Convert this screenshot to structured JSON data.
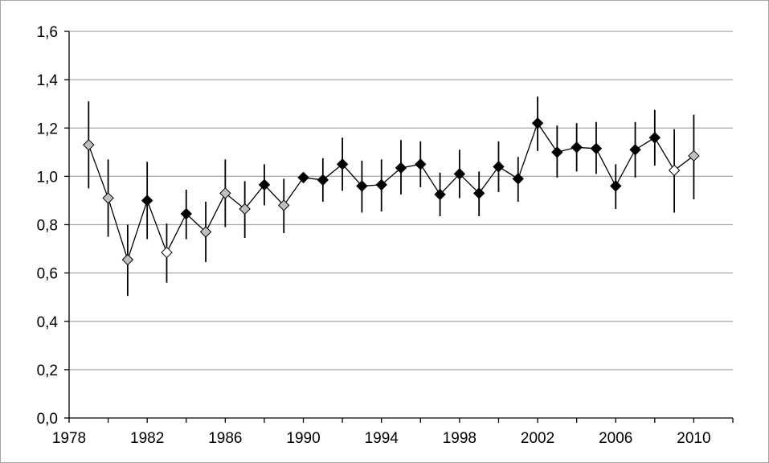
{
  "chart_data": {
    "type": "scatter",
    "title": "",
    "xlabel": "",
    "ylabel": "",
    "xlim": [
      1978,
      2012
    ],
    "ylim": [
      0,
      1.6
    ],
    "x_ticks": [
      1978,
      1982,
      1986,
      1990,
      1994,
      1998,
      2002,
      2006,
      2010
    ],
    "y_ticks": [
      0,
      0.2,
      0.4,
      0.6,
      0.8,
      1.0,
      1.2,
      1.4,
      1.6
    ],
    "y_tick_labels": [
      "0,0",
      "0,2",
      "0,4",
      "0,6",
      "0,8",
      "1,0",
      "1,2",
      "1,4",
      "1,6"
    ],
    "grid": "horizontal",
    "legend": "none",
    "colors": {
      "line": "#000000",
      "filled_marker": "#000000",
      "grey_marker": "#bfbfbf",
      "white_marker": "#ffffff",
      "grid": "#a6a6a6"
    },
    "points": [
      {
        "x": 1979,
        "y": 1.13,
        "low": 0.95,
        "high": 1.31,
        "marker": "grey"
      },
      {
        "x": 1980,
        "y": 0.91,
        "low": 0.75,
        "high": 1.07,
        "marker": "grey"
      },
      {
        "x": 1981,
        "y": 0.655,
        "low": 0.505,
        "high": 0.8,
        "marker": "grey"
      },
      {
        "x": 1982,
        "y": 0.9,
        "low": 0.74,
        "high": 1.06,
        "marker": "black"
      },
      {
        "x": 1983,
        "y": 0.685,
        "low": 0.56,
        "high": 0.805,
        "marker": "white"
      },
      {
        "x": 1984,
        "y": 0.845,
        "low": 0.74,
        "high": 0.945,
        "marker": "black"
      },
      {
        "x": 1985,
        "y": 0.77,
        "low": 0.645,
        "high": 0.895,
        "marker": "grey"
      },
      {
        "x": 1986,
        "y": 0.93,
        "low": 0.79,
        "high": 1.07,
        "marker": "grey"
      },
      {
        "x": 1987,
        "y": 0.865,
        "low": 0.745,
        "high": 0.98,
        "marker": "grey"
      },
      {
        "x": 1988,
        "y": 0.965,
        "low": 0.88,
        "high": 1.05,
        "marker": "black"
      },
      {
        "x": 1989,
        "y": 0.88,
        "low": 0.765,
        "high": 0.99,
        "marker": "grey"
      },
      {
        "x": 1990,
        "y": 0.995,
        "low": 0.99,
        "high": 1.0,
        "marker": "black"
      },
      {
        "x": 1991,
        "y": 0.985,
        "low": 0.895,
        "high": 1.075,
        "marker": "black"
      },
      {
        "x": 1992,
        "y": 1.05,
        "low": 0.94,
        "high": 1.16,
        "marker": "black"
      },
      {
        "x": 1993,
        "y": 0.96,
        "low": 0.85,
        "high": 1.065,
        "marker": "black"
      },
      {
        "x": 1994,
        "y": 0.965,
        "low": 0.855,
        "high": 1.07,
        "marker": "black"
      },
      {
        "x": 1995,
        "y": 1.035,
        "low": 0.925,
        "high": 1.15,
        "marker": "black"
      },
      {
        "x": 1996,
        "y": 1.05,
        "low": 0.955,
        "high": 1.145,
        "marker": "black"
      },
      {
        "x": 1997,
        "y": 0.925,
        "low": 0.835,
        "high": 1.015,
        "marker": "black"
      },
      {
        "x": 1998,
        "y": 1.01,
        "low": 0.91,
        "high": 1.11,
        "marker": "black"
      },
      {
        "x": 1999,
        "y": 0.93,
        "low": 0.835,
        "high": 1.02,
        "marker": "black"
      },
      {
        "x": 2000,
        "y": 1.04,
        "low": 0.935,
        "high": 1.145,
        "marker": "black"
      },
      {
        "x": 2001,
        "y": 0.99,
        "low": 0.895,
        "high": 1.08,
        "marker": "black"
      },
      {
        "x": 2002,
        "y": 1.22,
        "low": 1.105,
        "high": 1.33,
        "marker": "black"
      },
      {
        "x": 2003,
        "y": 1.1,
        "low": 0.995,
        "high": 1.21,
        "marker": "black"
      },
      {
        "x": 2004,
        "y": 1.12,
        "low": 1.02,
        "high": 1.22,
        "marker": "black"
      },
      {
        "x": 2005,
        "y": 1.115,
        "low": 1.01,
        "high": 1.225,
        "marker": "black"
      },
      {
        "x": 2006,
        "y": 0.96,
        "low": 0.865,
        "high": 1.05,
        "marker": "black"
      },
      {
        "x": 2007,
        "y": 1.11,
        "low": 0.995,
        "high": 1.225,
        "marker": "black"
      },
      {
        "x": 2008,
        "y": 1.16,
        "low": 1.045,
        "high": 1.275,
        "marker": "black"
      },
      {
        "x": 2009,
        "y": 1.025,
        "low": 0.85,
        "high": 1.195,
        "marker": "white"
      },
      {
        "x": 2010,
        "y": 1.085,
        "low": 0.905,
        "high": 1.255,
        "marker": "grey"
      }
    ]
  }
}
